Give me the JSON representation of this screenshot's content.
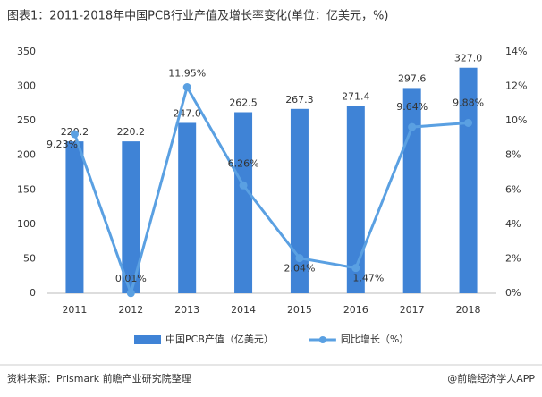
{
  "chart_data": {
    "type": "bar-line",
    "title": "图表1：2011-2018年中国PCB行业产值及增长率变化(单位：亿美元，%)",
    "categories": [
      "2011",
      "2012",
      "2013",
      "2014",
      "2015",
      "2016",
      "2017",
      "2018"
    ],
    "series": [
      {
        "name": "中国PCB产值（亿美元）",
        "type": "bar",
        "color": "#3f83d6",
        "values": [
          220.2,
          220.2,
          247.0,
          262.5,
          267.3,
          271.4,
          297.6,
          327.0
        ],
        "value_labels": [
          "220.2",
          "220.2",
          "247.0",
          "262.5",
          "267.3",
          "271.4",
          "297.6",
          "327.0"
        ]
      },
      {
        "name": "同比增长（%）",
        "type": "line",
        "axis": "y2",
        "color": "#5aa0e2",
        "values": [
          9.23,
          0.01,
          11.95,
          6.26,
          2.04,
          1.47,
          9.64,
          9.88
        ],
        "value_labels": [
          "9.23%",
          "0.01%",
          "11.95%",
          "6.26%",
          "2.04%",
          "1.47%",
          "9.64%",
          "9.88%"
        ]
      }
    ],
    "ylim": [
      0,
      350
    ],
    "yticks": [
      0,
      50,
      100,
      150,
      200,
      250,
      300,
      350
    ],
    "y2lim": [
      0,
      14
    ],
    "y2ticks": [
      {
        "value": 0,
        "label": "0%"
      },
      {
        "value": 2,
        "label": "2%"
      },
      {
        "value": 4,
        "label": "4%"
      },
      {
        "value": 6,
        "label": "6%"
      },
      {
        "value": 8,
        "label": "8%"
      },
      {
        "value": 10,
        "label": "10%"
      },
      {
        "value": 12,
        "label": "12%"
      },
      {
        "value": 14,
        "label": "14%"
      }
    ],
    "legend": "bottom",
    "source": "资料来源：Prismark 前瞻产业研究院整理",
    "credit": "@前瞻经济学人APP"
  }
}
